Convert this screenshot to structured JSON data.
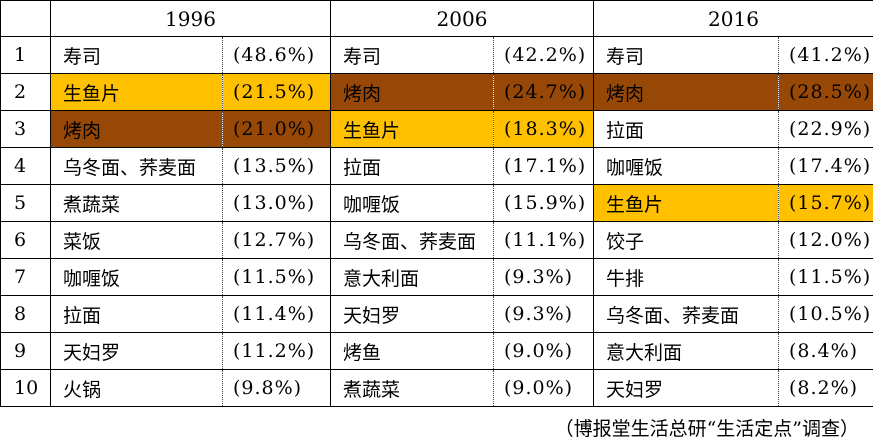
{
  "colors": {
    "highlight_gold": "#FFC000",
    "highlight_brown": "#984806",
    "border": "#000000",
    "text": "#000000"
  },
  "chart_data": {
    "type": "table",
    "years": [
      "1996",
      "2006",
      "2016"
    ],
    "rank_header": "",
    "rows": [
      {
        "rank": "1",
        "cells": [
          {
            "food": "寿司",
            "pct": "(48.6%)",
            "hl": ""
          },
          {
            "food": "寿司",
            "pct": "(42.2%)",
            "hl": ""
          },
          {
            "food": "寿司",
            "pct": "(41.2%)",
            "hl": ""
          }
        ]
      },
      {
        "rank": "2",
        "cells": [
          {
            "food": "生鱼片",
            "pct": "(21.5%)",
            "hl": "gold"
          },
          {
            "food": "烤肉",
            "pct": "(24.7%)",
            "hl": "brown"
          },
          {
            "food": "烤肉",
            "pct": "(28.5%)",
            "hl": "brown"
          }
        ]
      },
      {
        "rank": "3",
        "cells": [
          {
            "food": "烤肉",
            "pct": "(21.0%)",
            "hl": "brown"
          },
          {
            "food": "生鱼片",
            "pct": "(18.3%)",
            "hl": "gold"
          },
          {
            "food": "拉面",
            "pct": "(22.9%)",
            "hl": ""
          }
        ]
      },
      {
        "rank": "4",
        "cells": [
          {
            "food": "乌冬面、荞麦面",
            "pct": "(13.5%)",
            "hl": ""
          },
          {
            "food": "拉面",
            "pct": "(17.1%)",
            "hl": ""
          },
          {
            "food": "咖喱饭",
            "pct": "(17.4%)",
            "hl": ""
          }
        ]
      },
      {
        "rank": "5",
        "cells": [
          {
            "food": "煮蔬菜",
            "pct": "(13.0%)",
            "hl": ""
          },
          {
            "food": "咖喱饭",
            "pct": "(15.9%)",
            "hl": ""
          },
          {
            "food": "生鱼片",
            "pct": "(15.7%)",
            "hl": "gold"
          }
        ]
      },
      {
        "rank": "6",
        "cells": [
          {
            "food": "菜饭",
            "pct": "(12.7%)",
            "hl": ""
          },
          {
            "food": "乌冬面、荞麦面",
            "pct": "(11.1%)",
            "hl": ""
          },
          {
            "food": "饺子",
            "pct": "(12.0%)",
            "hl": ""
          }
        ]
      },
      {
        "rank": "7",
        "cells": [
          {
            "food": "咖喱饭",
            "pct": "(11.5%)",
            "hl": ""
          },
          {
            "food": "意大利面",
            "pct": "(9.3%)",
            "hl": ""
          },
          {
            "food": "牛排",
            "pct": "(11.5%)",
            "hl": ""
          }
        ]
      },
      {
        "rank": "8",
        "cells": [
          {
            "food": "拉面",
            "pct": "(11.4%)",
            "hl": ""
          },
          {
            "food": "天妇罗",
            "pct": "(9.3%)",
            "hl": ""
          },
          {
            "food": "乌冬面、荞麦面",
            "pct": "(10.5%)",
            "hl": ""
          }
        ]
      },
      {
        "rank": "9",
        "cells": [
          {
            "food": "天妇罗",
            "pct": "(11.2%)",
            "hl": ""
          },
          {
            "food": "烤鱼",
            "pct": "(9.0%)",
            "hl": ""
          },
          {
            "food": "意大利面",
            "pct": "(8.4%)",
            "hl": ""
          }
        ]
      },
      {
        "rank": "10",
        "cells": [
          {
            "food": "火锅",
            "pct": "(9.8%)",
            "hl": ""
          },
          {
            "food": "煮蔬菜",
            "pct": "(9.0%)",
            "hl": ""
          },
          {
            "food": "天妇罗",
            "pct": "(8.2%)",
            "hl": ""
          }
        ]
      }
    ],
    "source": "（博报堂生活总研“生活定点”调查）"
  }
}
